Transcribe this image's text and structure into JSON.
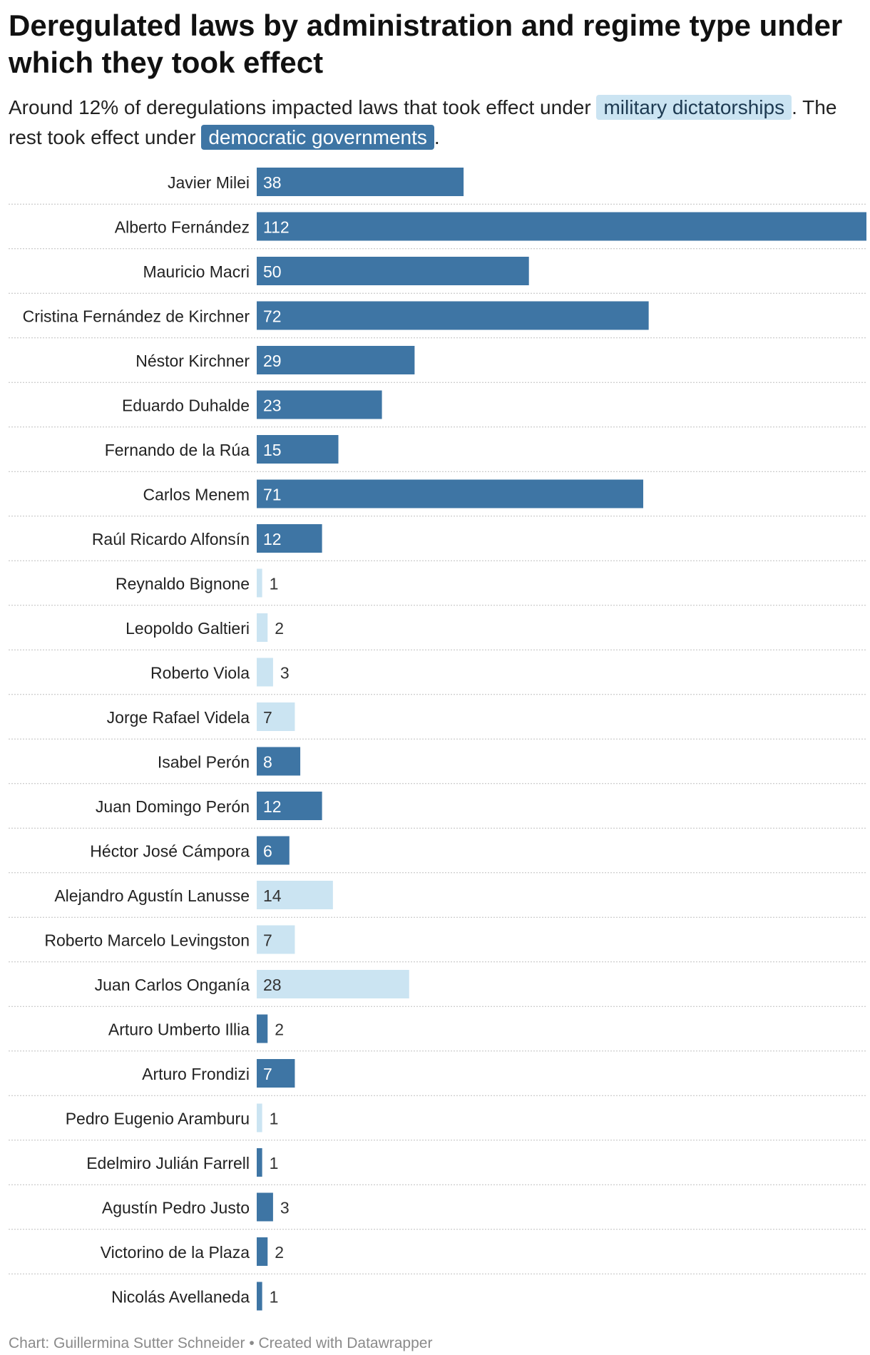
{
  "title": "Deregulated laws by administration and regime type under which they took effect",
  "subtitle": {
    "part1": "Around 12% of deregulations impacted laws that took effect under",
    "military_label": "military dictatorships",
    "part2": ". The rest took effect under",
    "democratic_label": "democratic governments",
    "part3": "."
  },
  "footer": "Chart: Guillermina Sutter Schneider • Created with Datawrapper",
  "colors": {
    "democratic": "#3e75a4",
    "military": "#cbe4f2",
    "label_on_dark": "#ffffff",
    "label_on_light": "#333333"
  },
  "chart_data": {
    "type": "bar",
    "orientation": "horizontal",
    "xlim": [
      0,
      112
    ],
    "grid": false,
    "categories": [
      "Javier Milei",
      "Alberto Fernández",
      "Mauricio Macri",
      "Cristina Fernández de Kirchner",
      "Néstor Kirchner",
      "Eduardo Duhalde",
      "Fernando de la Rúa",
      "Carlos Menem",
      "Raúl Ricardo Alfonsín",
      "Reynaldo Bignone",
      "Leopoldo Galtieri",
      "Roberto Viola",
      "Jorge Rafael Videla",
      "Isabel Perón",
      "Juan Domingo Perón",
      "Héctor José Cámpora",
      "Alejandro Agustín Lanusse",
      "Roberto Marcelo Levingston",
      "Juan Carlos Onganía",
      "Arturo Umberto Illia",
      "Arturo Frondizi",
      "Pedro Eugenio Aramburu",
      "Edelmiro Julián Farrell",
      "Agustín Pedro Justo",
      "Victorino de la Plaza",
      "Nicolás Avellaneda"
    ],
    "values": [
      38,
      112,
      50,
      72,
      29,
      23,
      15,
      71,
      12,
      1,
      2,
      3,
      7,
      8,
      12,
      6,
      14,
      7,
      28,
      2,
      7,
      1,
      1,
      3,
      2,
      1
    ],
    "regime": [
      "democratic",
      "democratic",
      "democratic",
      "democratic",
      "democratic",
      "democratic",
      "democratic",
      "democratic",
      "democratic",
      "military",
      "military",
      "military",
      "military",
      "democratic",
      "democratic",
      "democratic",
      "military",
      "military",
      "military",
      "democratic",
      "democratic",
      "military",
      "democratic",
      "democratic",
      "democratic",
      "democratic"
    ]
  }
}
